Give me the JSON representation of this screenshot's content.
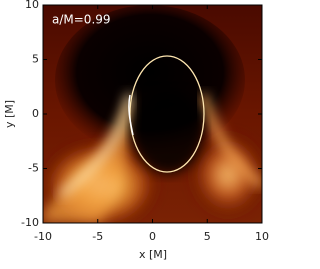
{
  "chart_data": {
    "type": "image",
    "annotation": "a/M=0.99",
    "xlabel": "x [M]",
    "ylabel": "y [M]",
    "xlim": [
      -10,
      10
    ],
    "ylim": [
      -10,
      10
    ],
    "xticks": [
      -10,
      -5,
      0,
      5,
      10
    ],
    "yticks": [
      -10,
      -5,
      0,
      5,
      10
    ]
  }
}
